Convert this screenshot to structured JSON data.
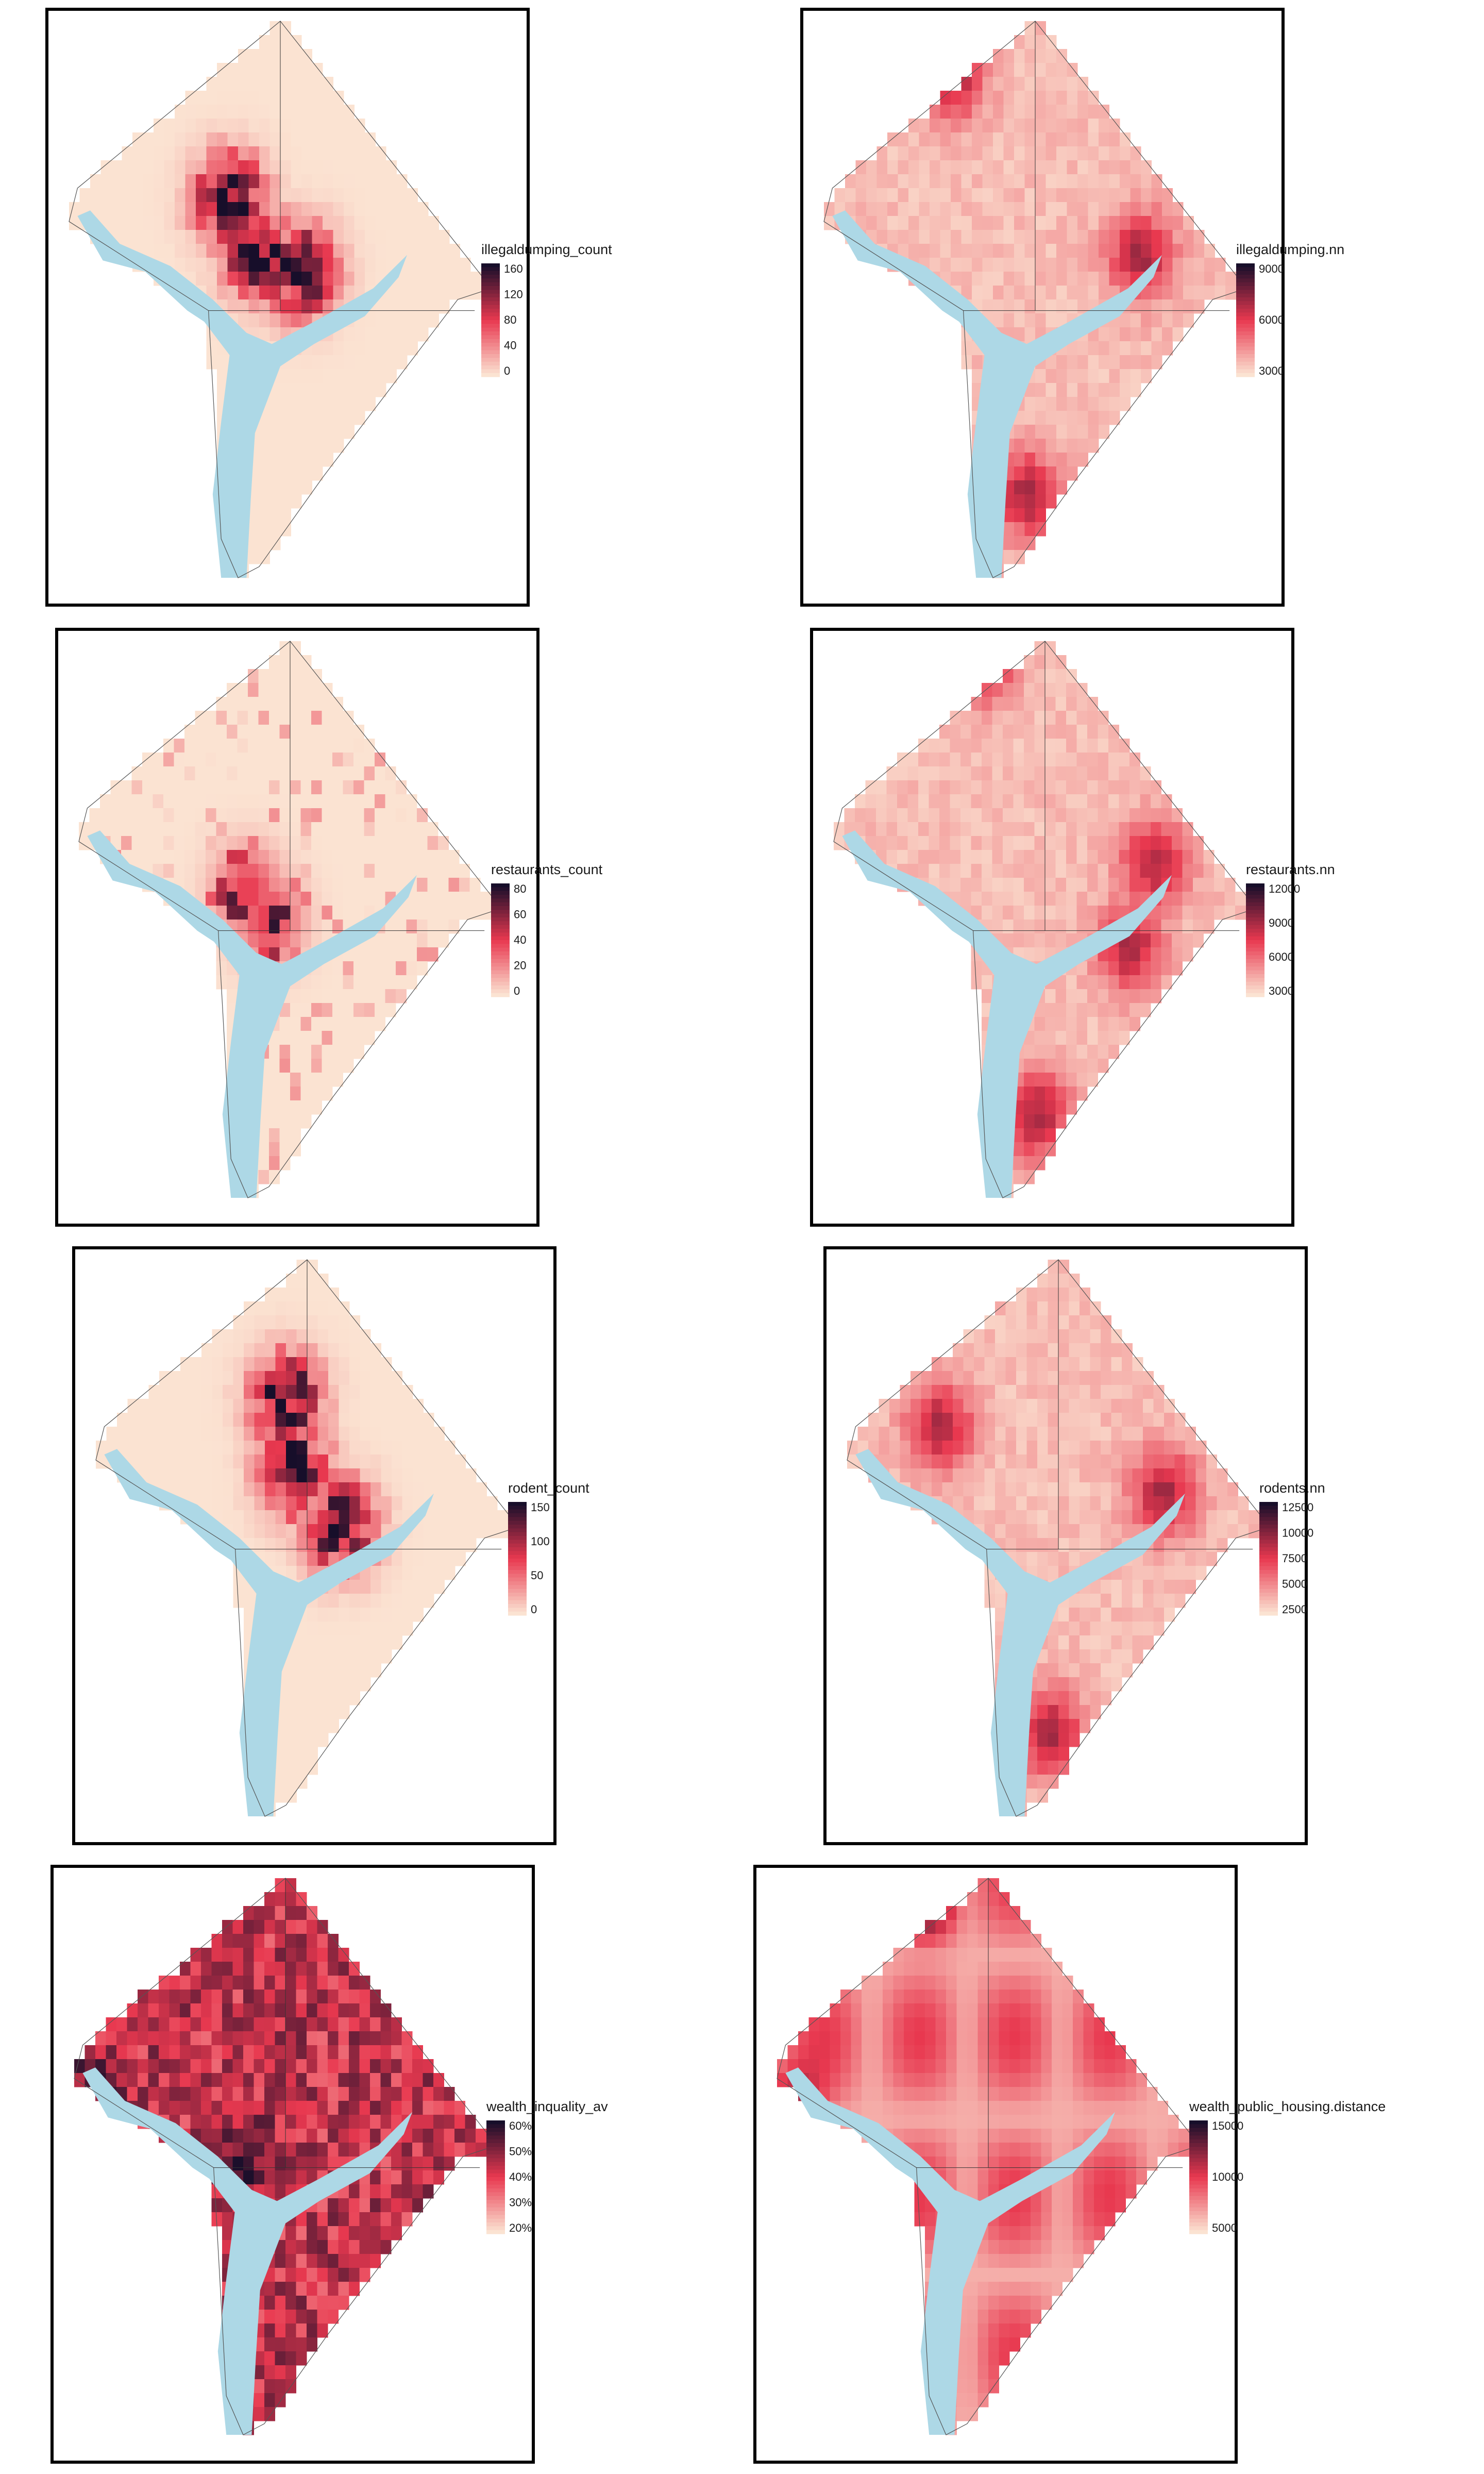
{
  "panels": [
    {
      "id": "illegaldumping-count",
      "title": "illegaldumping_count",
      "ticks": [
        "160",
        "120",
        "80",
        "40",
        "0"
      ],
      "style": "count",
      "seed": 11,
      "hot": [
        [
          0.38,
          0.32
        ],
        [
          0.55,
          0.45
        ],
        [
          0.45,
          0.42
        ]
      ]
    },
    {
      "id": "illegaldumping-nn",
      "title": "illegaldumping.nn",
      "ticks": [
        "9000",
        "6000",
        "3000"
      ],
      "style": "nn",
      "seed": 12,
      "hot": [
        [
          0.3,
          0.1
        ],
        [
          0.48,
          0.85
        ],
        [
          0.75,
          0.42
        ]
      ]
    },
    {
      "id": "restaurants-count",
      "title": "restaurants_count",
      "ticks": [
        "80",
        "60",
        "40",
        "20",
        "0"
      ],
      "style": "sparse",
      "seed": 21,
      "hot": [
        [
          0.4,
          0.45
        ],
        [
          0.45,
          0.5
        ]
      ]
    },
    {
      "id": "restaurants-nn",
      "title": "restaurants.nn",
      "ticks": [
        "12000",
        "9000",
        "6000",
        "3000"
      ],
      "style": "nn",
      "seed": 22,
      "hot": [
        [
          0.35,
          0.03
        ],
        [
          0.48,
          0.85
        ],
        [
          0.76,
          0.4
        ],
        [
          0.7,
          0.55
        ]
      ]
    },
    {
      "id": "rodent-count",
      "title": "rodent_count",
      "ticks": [
        "150",
        "100",
        "50",
        "0"
      ],
      "style": "count",
      "seed": 31,
      "hot": [
        [
          0.45,
          0.25
        ],
        [
          0.47,
          0.38
        ],
        [
          0.58,
          0.48
        ]
      ]
    },
    {
      "id": "rodents-nn",
      "title": "rodents.nn",
      "ticks": [
        "12500",
        "10000",
        "7500",
        "5000",
        "2500"
      ],
      "style": "nn",
      "seed": 32,
      "hot": [
        [
          0.22,
          0.3
        ],
        [
          0.48,
          0.85
        ],
        [
          0.75,
          0.42
        ]
      ]
    },
    {
      "id": "wealth-inquality-av",
      "title": "wealth_inquality_av",
      "ticks": [
        "60%",
        "50%",
        "40%",
        "30%",
        "20%"
      ],
      "style": "dense",
      "seed": 41,
      "hot": [
        [
          0.05,
          0.4
        ],
        [
          0.4,
          0.5
        ]
      ]
    },
    {
      "id": "wealth-public-housing-distance",
      "title": "wealth_public_housing.distance",
      "ticks": [
        "15000",
        "10000",
        "5000"
      ],
      "style": "distance",
      "seed": 42,
      "hot": [
        [
          0.03,
          0.42
        ],
        [
          0.35,
          0.03
        ]
      ]
    }
  ],
  "colors": {
    "low": "#fbe3d2",
    "mid": "#e8384f",
    "high": "#170e2a",
    "water": "#add8e6",
    "border": "#000000"
  }
}
